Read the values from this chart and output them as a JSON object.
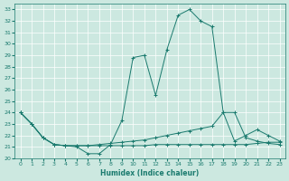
{
  "xlabel": "Humidex (Indice chaleur)",
  "background_color": "#cce8e0",
  "line_color": "#1a7a6e",
  "grid_color": "#b8d8d0",
  "xlim": [
    -0.5,
    23.5
  ],
  "ylim": [
    20,
    33.5
  ],
  "yticks": [
    20,
    21,
    22,
    23,
    24,
    25,
    26,
    27,
    28,
    29,
    30,
    31,
    32,
    33
  ],
  "xticks": [
    0,
    1,
    2,
    3,
    4,
    5,
    6,
    7,
    8,
    9,
    10,
    11,
    12,
    13,
    14,
    15,
    16,
    17,
    18,
    19,
    20,
    21,
    22,
    23
  ],
  "line1_x": [
    0,
    1,
    2,
    3,
    4,
    5,
    6,
    7,
    8,
    9,
    10,
    11,
    12,
    13,
    14,
    15,
    16,
    17,
    18,
    19,
    20,
    21,
    22,
    23
  ],
  "line1_y": [
    24.0,
    23.0,
    21.8,
    21.2,
    21.1,
    21.0,
    20.4,
    20.4,
    21.2,
    23.3,
    28.8,
    29.0,
    25.5,
    29.5,
    32.5,
    33.0,
    32.0,
    31.5,
    24.0,
    21.5,
    22.0,
    22.5,
    22.0,
    21.5
  ],
  "line2_x": [
    0,
    1,
    2,
    3,
    4,
    5,
    6,
    7,
    8,
    9,
    10,
    11,
    12,
    13,
    14,
    15,
    16,
    17,
    18,
    19,
    20,
    21,
    22,
    23
  ],
  "line2_y": [
    24.0,
    23.0,
    21.8,
    21.2,
    21.1,
    21.1,
    21.1,
    21.2,
    21.3,
    21.4,
    21.5,
    21.6,
    21.8,
    22.0,
    22.2,
    22.4,
    22.6,
    22.8,
    24.0,
    24.0,
    21.8,
    21.5,
    21.3,
    21.2
  ],
  "line3_x": [
    0,
    1,
    2,
    3,
    4,
    5,
    6,
    7,
    8,
    9,
    10,
    11,
    12,
    13,
    14,
    15,
    16,
    17,
    18,
    19,
    20,
    21,
    22,
    23
  ],
  "line3_y": [
    24.0,
    23.0,
    21.8,
    21.2,
    21.1,
    21.1,
    21.1,
    21.1,
    21.1,
    21.1,
    21.1,
    21.1,
    21.2,
    21.2,
    21.2,
    21.2,
    21.2,
    21.2,
    21.2,
    21.2,
    21.2,
    21.3,
    21.4,
    21.4
  ]
}
